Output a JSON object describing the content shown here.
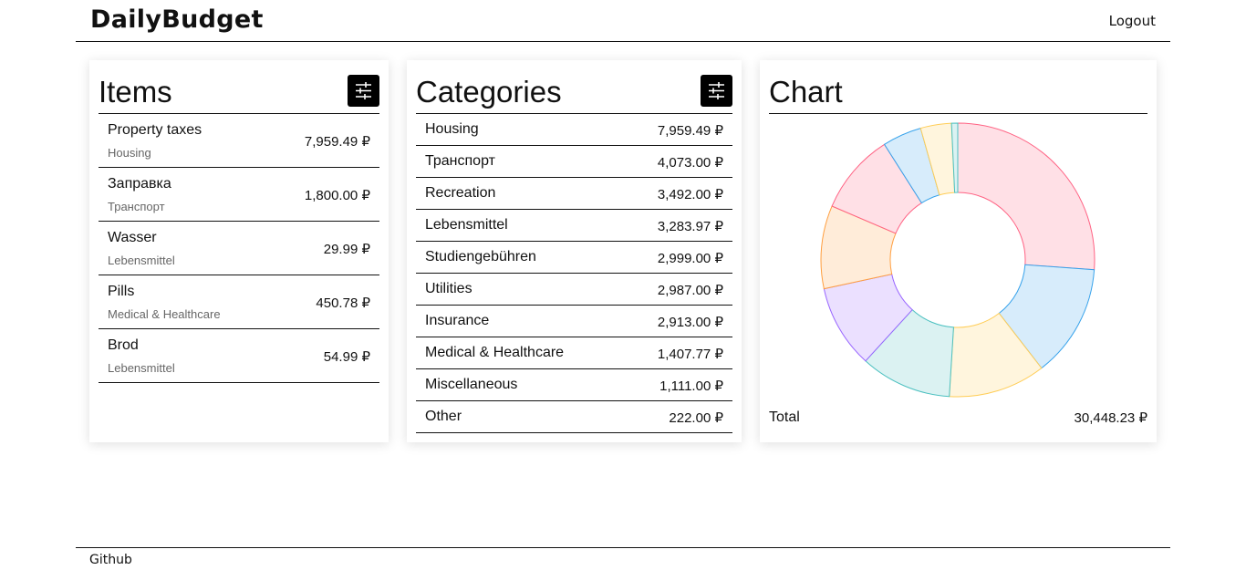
{
  "header": {
    "brand": "DailyBudget",
    "logout_label": "Logout"
  },
  "items_panel": {
    "title": "Items",
    "filter_icon": "sliders-icon",
    "items": [
      {
        "name": "Property taxes",
        "category": "Housing",
        "amount": "7,959.49 ₽"
      },
      {
        "name": "Заправка",
        "category": "Транспорт",
        "amount": "1,800.00 ₽"
      },
      {
        "name": "Wasser",
        "category": "Lebensmittel",
        "amount": "29.99 ₽"
      },
      {
        "name": "Pills",
        "category": "Medical & Healthcare",
        "amount": "450.78 ₽"
      },
      {
        "name": "Brod",
        "category": "Lebensmittel",
        "amount": "54.99 ₽"
      }
    ]
  },
  "categories_panel": {
    "title": "Categories",
    "filter_icon": "sliders-icon",
    "categories": [
      {
        "name": "Housing",
        "amount": "7,959.49 ₽"
      },
      {
        "name": "Транспорт",
        "amount": "4,073.00 ₽"
      },
      {
        "name": "Recreation",
        "amount": "3,492.00 ₽"
      },
      {
        "name": "Lebensmittel",
        "amount": "3,283.97 ₽"
      },
      {
        "name": "Studiengebühren",
        "amount": "2,999.00 ₽"
      },
      {
        "name": "Utilities",
        "amount": "2,987.00 ₽"
      },
      {
        "name": "Insurance",
        "amount": "2,913.00 ₽"
      },
      {
        "name": "Medical & Healthcare",
        "amount": "1,407.77 ₽"
      },
      {
        "name": "Miscellaneous",
        "amount": "1,111.00 ₽"
      },
      {
        "name": "Other",
        "amount": "222.00 ₽"
      }
    ]
  },
  "chart_panel": {
    "title": "Chart",
    "total_label": "Total",
    "total_value": "30,448.23 ₽"
  },
  "chart_data": {
    "type": "pie",
    "variant": "doughnut",
    "title": "Chart",
    "categories": [
      "Housing",
      "Транспорт",
      "Recreation",
      "Lebensmittel",
      "Studiengebühren",
      "Utilities",
      "Insurance",
      "Medical & Healthcare",
      "Miscellaneous",
      "Other"
    ],
    "values": [
      7959.49,
      4073.0,
      3492.0,
      3283.97,
      2999.0,
      2987.0,
      2913.0,
      1407.77,
      1111.0,
      222.0
    ],
    "fill_colors": [
      "#ffe0e6",
      "#d7ecfb",
      "#fff5dd",
      "#dbf2f2",
      "#ebe0ff",
      "#ffecd9",
      "#ffe0e6",
      "#d7ecfb",
      "#fff5dd",
      "#dbf2f2"
    ],
    "stroke_colors": [
      "#ff6384",
      "#36a2eb",
      "#ffcd56",
      "#4bc0c0",
      "#9966ff",
      "#ff9f40",
      "#ff6384",
      "#36a2eb",
      "#ffcd56",
      "#4bc0c0"
    ],
    "legend": "none"
  },
  "footer": {
    "github_label": "Github"
  }
}
